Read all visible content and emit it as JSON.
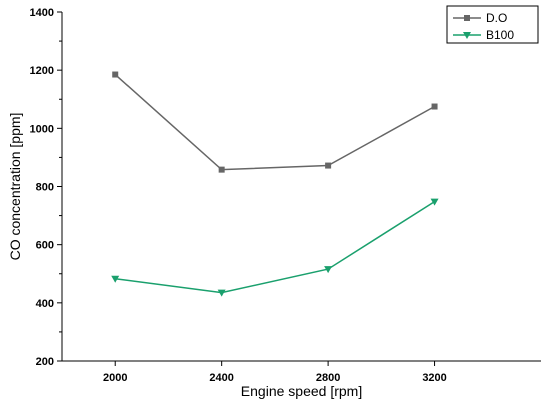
{
  "chart_data": {
    "type": "line",
    "title": "",
    "xlabel": "Engine speed [rpm]",
    "ylabel": "CO concentration [ppm]",
    "categories": [
      "2000",
      "2400",
      "2800",
      "3200"
    ],
    "x": [
      2000,
      2400,
      2800,
      3200
    ],
    "xlim": [
      1800,
      3600
    ],
    "ylim": [
      200,
      1400
    ],
    "yticks": [
      200,
      400,
      600,
      800,
      1000,
      1200,
      1400
    ],
    "grid": false,
    "legend_position": "top-right",
    "series": [
      {
        "name": "D.O",
        "values": [
          1185,
          858,
          872,
          1075
        ],
        "color": "#666666",
        "marker": "square"
      },
      {
        "name": "B100",
        "values": [
          483,
          435,
          516,
          748
        ],
        "color": "#1aa06d",
        "marker": "triangle-down"
      }
    ]
  }
}
